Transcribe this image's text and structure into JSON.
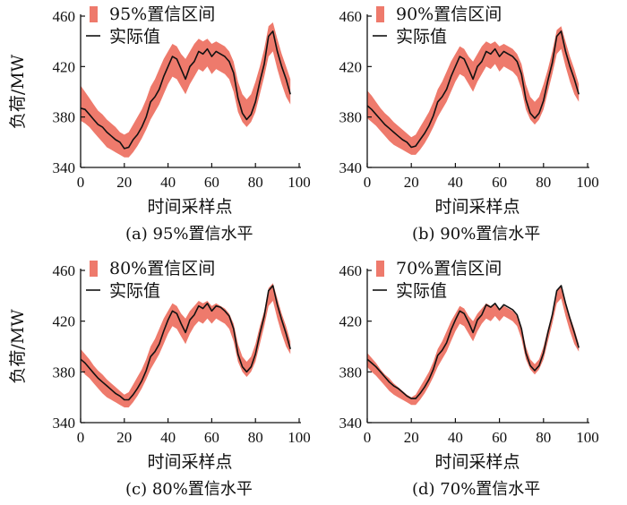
{
  "figure": {
    "x_tick_labels": [
      "0",
      "20",
      "40",
      "60",
      "80",
      "100"
    ],
    "y_tick_labels": [
      "340",
      "380",
      "420",
      "460"
    ]
  },
  "colors": {
    "band": "#ee7a6c",
    "line": "#111111"
  },
  "chart_data": [
    {
      "type": "area",
      "caption": "(a)  95%置信水平",
      "xlabel": "时间采样点",
      "ylabel": "负荷/MW",
      "xlim": [
        0,
        100
      ],
      "ylim": [
        340,
        460
      ],
      "x_ticks": [
        0,
        20,
        40,
        60,
        80,
        100
      ],
      "y_ticks": [
        340,
        380,
        420,
        460
      ],
      "legend": [
        "95%置信区间",
        "实际值"
      ],
      "legend_position": "top-left",
      "x": [
        0,
        2,
        4,
        6,
        8,
        10,
        12,
        14,
        16,
        18,
        20,
        22,
        24,
        26,
        28,
        30,
        32,
        34,
        36,
        38,
        40,
        42,
        44,
        46,
        48,
        50,
        52,
        54,
        56,
        58,
        60,
        62,
        64,
        66,
        68,
        70,
        72,
        74,
        76,
        78,
        80,
        82,
        84,
        86,
        88,
        90,
        92,
        94,
        96
      ],
      "series": [
        {
          "name": "实际值",
          "values": [
            387,
            386,
            382,
            378,
            374,
            372,
            368,
            365,
            362,
            360,
            355,
            356,
            362,
            366,
            372,
            380,
            392,
            396,
            402,
            412,
            420,
            428,
            426,
            418,
            410,
            420,
            424,
            432,
            430,
            434,
            428,
            432,
            430,
            428,
            424,
            415,
            395,
            383,
            378,
            382,
            392,
            408,
            422,
            444,
            448,
            432,
            420,
            410,
            398
          ]
        },
        {
          "name": "95%置信区间",
          "lower": [
            377,
            375,
            372,
            368,
            364,
            360,
            356,
            354,
            352,
            350,
            348,
            348,
            352,
            357,
            363,
            370,
            378,
            384,
            390,
            398,
            406,
            412,
            410,
            404,
            398,
            406,
            412,
            418,
            416,
            420,
            414,
            418,
            416,
            414,
            410,
            400,
            384,
            376,
            372,
            376,
            384,
            398,
            412,
            428,
            432,
            418,
            406,
            396,
            390
          ],
          "upper": [
            405,
            400,
            395,
            390,
            385,
            382,
            378,
            375,
            372,
            368,
            366,
            368,
            374,
            380,
            386,
            394,
            404,
            410,
            418,
            426,
            432,
            438,
            436,
            430,
            426,
            432,
            438,
            442,
            440,
            442,
            438,
            440,
            438,
            436,
            432,
            424,
            408,
            398,
            394,
            398,
            408,
            420,
            434,
            452,
            455,
            442,
            430,
            420,
            410
          ]
        }
      ]
    },
    {
      "type": "area",
      "caption": "(b)  90%置信水平",
      "xlabel": "时间采样点",
      "ylabel": "",
      "xlim": [
        0,
        100
      ],
      "ylim": [
        340,
        460
      ],
      "x_ticks": [
        0,
        20,
        40,
        60,
        80,
        100
      ],
      "y_ticks": [
        340,
        380,
        420,
        460
      ],
      "legend": [
        "90%置信区间",
        "实际值"
      ],
      "legend_position": "top-left",
      "x": [
        0,
        2,
        4,
        6,
        8,
        10,
        12,
        14,
        16,
        18,
        20,
        22,
        24,
        26,
        28,
        30,
        32,
        34,
        36,
        38,
        40,
        42,
        44,
        46,
        48,
        50,
        52,
        54,
        56,
        58,
        60,
        62,
        64,
        66,
        68,
        70,
        72,
        74,
        76,
        78,
        80,
        82,
        84,
        86,
        88,
        90,
        92,
        94,
        96
      ],
      "series": [
        {
          "name": "实际值",
          "values": [
            389,
            386,
            382,
            378,
            374,
            371,
            368,
            365,
            362,
            360,
            356,
            357,
            362,
            367,
            373,
            381,
            392,
            396,
            402,
            412,
            420,
            428,
            426,
            418,
            410,
            420,
            424,
            432,
            430,
            434,
            428,
            432,
            430,
            428,
            424,
            414,
            394,
            383,
            379,
            383,
            393,
            409,
            423,
            444,
            448,
            432,
            420,
            410,
            398
          ]
        },
        {
          "name": "90%置信区间",
          "lower": [
            379,
            376,
            373,
            369,
            365,
            361,
            358,
            356,
            354,
            352,
            350,
            350,
            354,
            359,
            365,
            372,
            380,
            386,
            392,
            400,
            408,
            414,
            412,
            406,
            400,
            408,
            414,
            420,
            418,
            422,
            416,
            420,
            418,
            416,
            412,
            402,
            386,
            378,
            374,
            378,
            386,
            400,
            414,
            430,
            434,
            420,
            408,
            398,
            392
          ],
          "upper": [
            401,
            397,
            392,
            387,
            383,
            380,
            376,
            373,
            370,
            367,
            364,
            366,
            372,
            378,
            384,
            392,
            402,
            408,
            416,
            424,
            430,
            436,
            434,
            428,
            424,
            430,
            436,
            440,
            438,
            440,
            436,
            438,
            436,
            434,
            430,
            422,
            406,
            396,
            392,
            396,
            406,
            418,
            432,
            449,
            452,
            440,
            428,
            418,
            406
          ]
        }
      ]
    },
    {
      "type": "area",
      "caption": "(c)  80%置信水平",
      "xlabel": "时间采样点",
      "ylabel": "负荷/MW",
      "xlim": [
        0,
        100
      ],
      "ylim": [
        340,
        460
      ],
      "x_ticks": [
        0,
        20,
        40,
        60,
        80,
        100
      ],
      "y_ticks": [
        340,
        380,
        420,
        460
      ],
      "legend": [
        "80%置信区间",
        "实际值"
      ],
      "legend_position": "top-left",
      "x": [
        0,
        2,
        4,
        6,
        8,
        10,
        12,
        14,
        16,
        18,
        20,
        22,
        24,
        26,
        28,
        30,
        32,
        34,
        36,
        38,
        40,
        42,
        44,
        46,
        48,
        50,
        52,
        54,
        56,
        58,
        60,
        62,
        64,
        66,
        68,
        70,
        72,
        74,
        76,
        78,
        80,
        82,
        84,
        86,
        88,
        90,
        92,
        94,
        96
      ],
      "series": [
        {
          "name": "实际值",
          "values": [
            390,
            387,
            383,
            379,
            375,
            372,
            369,
            366,
            363,
            361,
            358,
            358,
            362,
            367,
            373,
            381,
            392,
            396,
            402,
            412,
            421,
            428,
            426,
            418,
            411,
            421,
            425,
            432,
            430,
            434,
            428,
            432,
            431,
            428,
            424,
            414,
            394,
            384,
            380,
            384,
            394,
            410,
            424,
            444,
            448,
            433,
            421,
            410,
            398
          ]
        },
        {
          "name": "80%置信区间",
          "lower": [
            382,
            378,
            375,
            371,
            367,
            363,
            360,
            358,
            356,
            354,
            352,
            352,
            356,
            361,
            367,
            374,
            382,
            388,
            394,
            402,
            410,
            416,
            414,
            408,
            402,
            410,
            416,
            420,
            418,
            422,
            418,
            422,
            420,
            418,
            414,
            404,
            388,
            380,
            376,
            380,
            388,
            402,
            416,
            432,
            436,
            422,
            410,
            400,
            394
          ],
          "upper": [
            398,
            394,
            390,
            385,
            381,
            378,
            374,
            371,
            368,
            365,
            362,
            364,
            370,
            376,
            382,
            390,
            400,
            406,
            414,
            422,
            428,
            434,
            432,
            426,
            422,
            428,
            432,
            436,
            434,
            436,
            432,
            434,
            432,
            430,
            426,
            418,
            402,
            392,
            388,
            392,
            402,
            416,
            428,
            446,
            450,
            438,
            426,
            416,
            404
          ]
        }
      ]
    },
    {
      "type": "area",
      "caption": "(d)  70%置信水平",
      "xlabel": "时间采样点",
      "ylabel": "",
      "xlim": [
        0,
        100
      ],
      "ylim": [
        340,
        460
      ],
      "x_ticks": [
        0,
        20,
        40,
        60,
        80,
        100
      ],
      "y_ticks": [
        340,
        380,
        420,
        460
      ],
      "legend": [
        "70%置信区间",
        "实际值"
      ],
      "legend_position": "top-left",
      "x": [
        0,
        2,
        4,
        6,
        8,
        10,
        12,
        14,
        16,
        18,
        20,
        22,
        24,
        26,
        28,
        30,
        32,
        34,
        36,
        38,
        40,
        42,
        44,
        46,
        48,
        50,
        52,
        54,
        56,
        58,
        60,
        62,
        64,
        66,
        68,
        70,
        72,
        74,
        76,
        78,
        80,
        82,
        84,
        86,
        88,
        90,
        92,
        94,
        96
      ],
      "series": [
        {
          "name": "实际值",
          "values": [
            390,
            387,
            384,
            380,
            376,
            372,
            369,
            367,
            364,
            361,
            359,
            359,
            363,
            368,
            374,
            382,
            393,
            397,
            403,
            413,
            421,
            428,
            426,
            419,
            411,
            421,
            425,
            433,
            431,
            434,
            429,
            433,
            431,
            429,
            425,
            414,
            395,
            385,
            381,
            385,
            395,
            411,
            425,
            444,
            448,
            434,
            422,
            411,
            399
          ]
        },
        {
          "name": "70%置信区间",
          "lower": [
            384,
            380,
            377,
            373,
            369,
            365,
            362,
            360,
            358,
            356,
            354,
            354,
            358,
            363,
            369,
            376,
            384,
            390,
            396,
            404,
            412,
            418,
            416,
            410,
            404,
            412,
            418,
            422,
            420,
            424,
            420,
            424,
            422,
            420,
            416,
            406,
            390,
            382,
            378,
            382,
            390,
            404,
            418,
            434,
            438,
            424,
            412,
            402,
            396
          ],
          "upper": [
            395,
            391,
            387,
            382,
            378,
            375,
            371,
            368,
            365,
            362,
            360,
            362,
            368,
            374,
            380,
            388,
            398,
            404,
            412,
            420,
            426,
            432,
            430,
            424,
            420,
            426,
            430,
            434,
            432,
            434,
            430,
            432,
            430,
            428,
            424,
            416,
            400,
            390,
            386,
            390,
            400,
            414,
            426,
            444,
            448,
            436,
            424,
            414,
            402
          ]
        }
      ]
    }
  ]
}
